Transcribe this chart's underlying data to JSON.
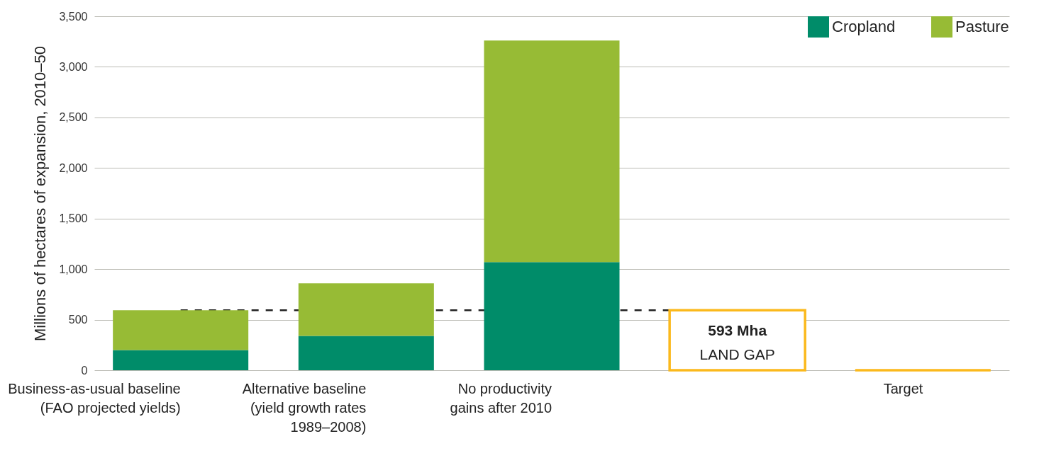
{
  "chart_data": {
    "type": "bar",
    "stacked": true,
    "ylabel": "Millions of hectares of expansion, 2010–50",
    "categories": [
      "Business-as-usual baseline\n(FAO projected yields)",
      "Alternative baseline\n(yield growth rates\n1989–2008)",
      "No productivity\ngains after 2010",
      null,
      "Target"
    ],
    "series": [
      {
        "name": "Cropland",
        "color": "#008c69",
        "values": [
          200,
          340,
          1070,
          null,
          null
        ]
      },
      {
        "name": "Pasture",
        "color": "#97bb35",
        "values": [
          393,
          520,
          2190,
          null,
          null
        ]
      },
      {
        "color": "#fbb91c",
        "values": [
          null,
          null,
          null,
          593,
          0
        ]
      }
    ],
    "ylim": [
      0,
      3500
    ],
    "yticks": [
      0,
      {
        "value": 500,
        "label": "500"
      },
      {
        "value": 1000,
        "label": "1,000"
      },
      {
        "value": 1500,
        "label": "1,500"
      },
      {
        "value": 2000,
        "label": "2,000"
      },
      {
        "value": 2500,
        "label": "2,500"
      },
      {
        "value": 3000,
        "label": "3,000"
      },
      {
        "value": 3500,
        "label": "3,500"
      }
    ],
    "grid": "y",
    "legend": "top right",
    "ref_lines": [
      {
        "axis": "y",
        "value": 593,
        "line_style": "dashed",
        "color": "#222222"
      }
    ],
    "annotations": [
      "593 Mha",
      "LAND GAP"
    ]
  }
}
